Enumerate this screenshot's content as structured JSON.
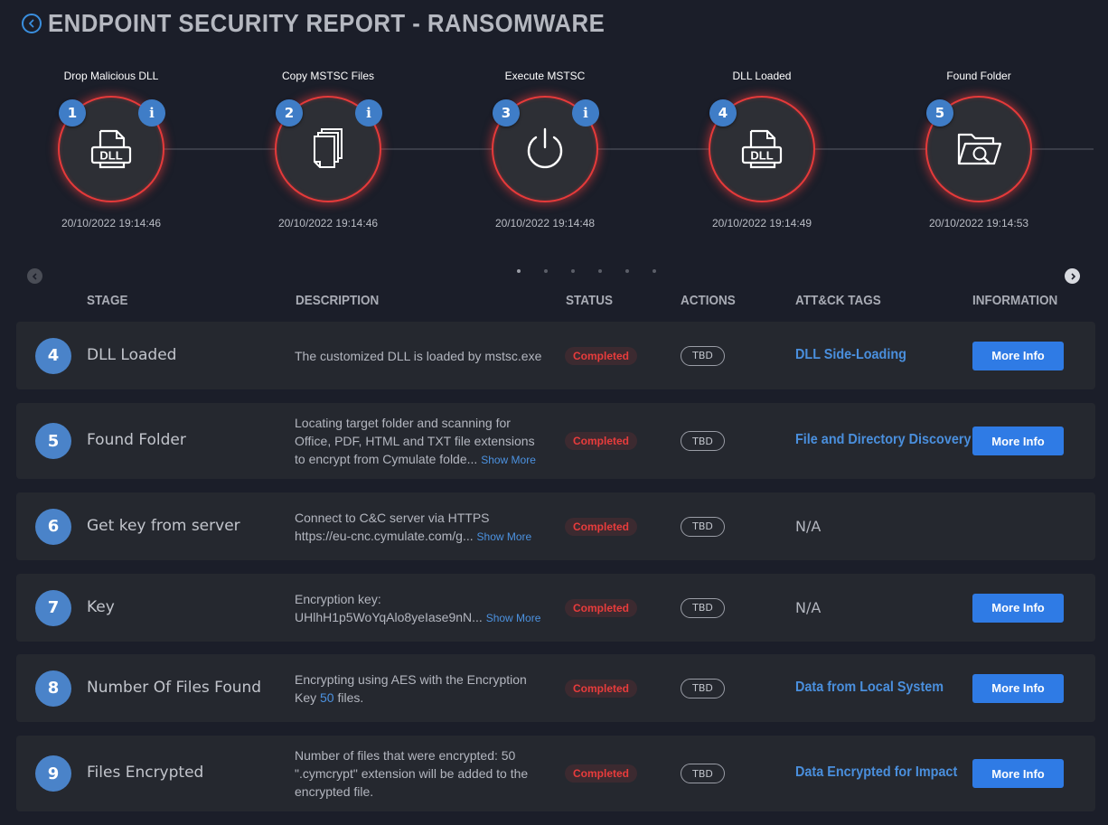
{
  "header": {
    "title": "ENDPOINT SECURITY REPORT - RANSOMWARE",
    "back_icon": "chevron-left-icon"
  },
  "timeline": {
    "steps": [
      {
        "num": "1",
        "label": "Drop Malicious DLL",
        "icon": "dll-file-icon",
        "time": "20/10/2022 19:14:46",
        "has_info": true
      },
      {
        "num": "2",
        "label": "Copy MSTSC Files",
        "icon": "copy-files-icon",
        "time": "20/10/2022 19:14:46",
        "has_info": true
      },
      {
        "num": "3",
        "label": "Execute MSTSC",
        "icon": "power-icon",
        "time": "20/10/2022 19:14:48",
        "has_info": true
      },
      {
        "num": "4",
        "label": "DLL Loaded",
        "icon": "dll-file-icon",
        "time": "20/10/2022 19:14:49",
        "has_info": false
      },
      {
        "num": "5",
        "label": "Found Folder",
        "icon": "folder-search-icon",
        "time": "20/10/2022 19:14:53",
        "has_info": false
      }
    ],
    "info_glyph": "i",
    "dll_text": "DLL",
    "page_count": 6,
    "active_page": 1
  },
  "table": {
    "headers": {
      "stage": "STAGE",
      "description": "DESCRIPTION",
      "status": "STATUS",
      "actions": "ACTIONS",
      "tags": "ATT&CK TAGS",
      "information": "INFORMATION"
    },
    "show_more_label": "Show More",
    "more_info_label": "More Info",
    "rows": [
      {
        "num": "4",
        "stage": "DLL Loaded",
        "desc_lines": [
          "The customized DLL is loaded by mstsc.exe"
        ],
        "status": "Completed",
        "action": "TBD",
        "tag": "DLL Side-Loading",
        "has_more_info": true
      },
      {
        "num": "5",
        "stage": "Found Folder",
        "desc_lines": [
          "Locating target folder and scanning for",
          "Office, PDF, HTML and TXT file extensions",
          "to encrypt from Cymulate folde..."
        ],
        "show_more": true,
        "status": "Completed",
        "action": "TBD",
        "tag": "File and Directory Discovery",
        "has_more_info": true
      },
      {
        "num": "6",
        "stage": "Get key from server",
        "desc_lines": [
          "Connect to C&C server via HTTPS",
          "https://eu-cnc.cymulate.com/g..."
        ],
        "show_more": true,
        "status": "Completed",
        "action": "TBD",
        "tag_na": "N/A",
        "has_more_info": false
      },
      {
        "num": "7",
        "stage": "Key",
        "desc_lines": [
          "Encryption key:",
          "UHlhH1p5WoYqAlo8yeIase9nN..."
        ],
        "show_more": true,
        "status": "Completed",
        "action": "TBD",
        "tag_na": "N/A",
        "has_more_info": true
      },
      {
        "num": "8",
        "stage": "Number Of Files Found",
        "desc_lines": [
          "Encrypting using AES with the Encryption"
        ],
        "desc_line2_parts": {
          "before": "Key ",
          "highlight": "50",
          "after": " files."
        },
        "status": "Completed",
        "action": "TBD",
        "tag": "Data from Local System",
        "has_more_info": true
      },
      {
        "num": "9",
        "stage": "Files Encrypted",
        "desc_lines": [
          "Number of files that were encrypted: 50",
          "\".cymcrypt\" extension will be added to the",
          "encrypted file."
        ],
        "status": "Completed",
        "action": "TBD",
        "tag": "Data Encrypted for Impact",
        "has_more_info": true
      }
    ]
  }
}
